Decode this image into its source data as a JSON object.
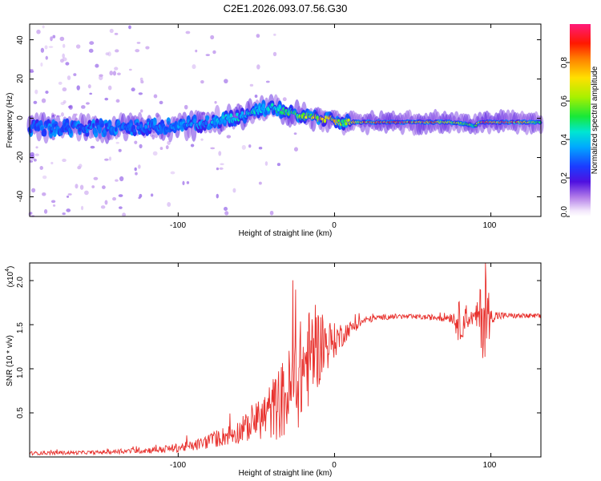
{
  "title": "C2E1.2026.093.07.56.G30",
  "colors": {
    "signal": "#e8322e",
    "frame": "#000000",
    "background": "#ffffff"
  },
  "chart_data": [
    {
      "type": "heatmap",
      "title": "C2E1.2026.093.07.56.G30",
      "xlabel": "Height of straight line (km)",
      "ylabel": "Frequency (Hz)",
      "xlim": [
        -195,
        132
      ],
      "ylim": [
        -50,
        48
      ],
      "xticks": [
        -100,
        0,
        100
      ],
      "xtick_labels": [
        "-100",
        "0",
        "100"
      ],
      "yticks": [
        -40,
        -20,
        0,
        20,
        40
      ],
      "ytick_labels": [
        "-40",
        "-20",
        "0",
        "20",
        "40"
      ],
      "colorbar": {
        "label": "Normalized spectral amplitude",
        "range": [
          0,
          1
        ],
        "ticks": [
          0,
          0.2,
          0.4,
          0.6,
          0.8
        ],
        "tick_labels": [
          "0.0",
          "0.2",
          "0.4",
          "0.6",
          "0.8"
        ]
      },
      "ridge": {
        "description": "frequency of the spectral peak vs height",
        "x": [
          -195,
          -150,
          -100,
          -80,
          -60,
          -50,
          -40,
          -30,
          -20,
          -10,
          0,
          5,
          20,
          40,
          60,
          75,
          85,
          90,
          92,
          95,
          100,
          120,
          132
        ],
        "y": [
          -5,
          -5,
          -4,
          -2,
          1,
          4,
          6,
          3,
          1,
          0,
          -1,
          -2,
          -2,
          -2,
          -2,
          -2,
          -3,
          -4,
          -2,
          -2,
          -2,
          -2,
          -2
        ],
        "amplitude": [
          0.3,
          0.32,
          0.35,
          0.4,
          0.45,
          0.45,
          0.45,
          0.55,
          0.65,
          0.75,
          0.8,
          0.6,
          0.9,
          0.95,
          0.95,
          0.7,
          0.6,
          0.6,
          0.9,
          0.95,
          0.95,
          0.9,
          0.5
        ]
      }
    },
    {
      "type": "line",
      "xlabel": "Height of straight line (km)",
      "ylabel": "SNR (10 * v/v)",
      "y_scale_label": "(x10",
      "y_scale_exponent": "4",
      "xlim": [
        -195,
        132
      ],
      "ylim": [
        0,
        2.2
      ],
      "xticks": [
        -100,
        0,
        100
      ],
      "xtick_labels": [
        "-100",
        "0",
        "100"
      ],
      "yticks": [
        0.5,
        1.0,
        1.5,
        2.0
      ],
      "ytick_labels": [
        "0.5",
        "1.0",
        "1.5",
        "2.0"
      ],
      "series": [
        {
          "name": "SNR",
          "x": [
            -195,
            -150,
            -110,
            -90,
            -75,
            -60,
            -50,
            -40,
            -30,
            -25,
            -20,
            -15,
            -10,
            -5,
            0,
            10,
            20,
            30,
            40,
            60,
            75,
            80,
            85,
            90,
            95,
            97,
            100,
            110,
            132
          ],
          "y": [
            0.04,
            0.05,
            0.08,
            0.12,
            0.2,
            0.28,
            0.38,
            0.5,
            0.65,
            0.8,
            0.95,
            1.1,
            1.2,
            1.25,
            1.3,
            1.45,
            1.55,
            1.58,
            1.59,
            1.58,
            1.58,
            1.5,
            1.55,
            1.58,
            1.55,
            1.5,
            1.59,
            1.6,
            1.59
          ],
          "noise_amplitude": [
            0.02,
            0.02,
            0.04,
            0.06,
            0.1,
            0.14,
            0.2,
            0.35,
            0.5,
            0.6,
            0.6,
            0.55,
            0.45,
            0.3,
            0.2,
            0.08,
            0.04,
            0.03,
            0.03,
            0.03,
            0.06,
            0.25,
            0.1,
            0.08,
            0.5,
            0.6,
            0.08,
            0.03,
            0.03
          ]
        }
      ]
    }
  ]
}
